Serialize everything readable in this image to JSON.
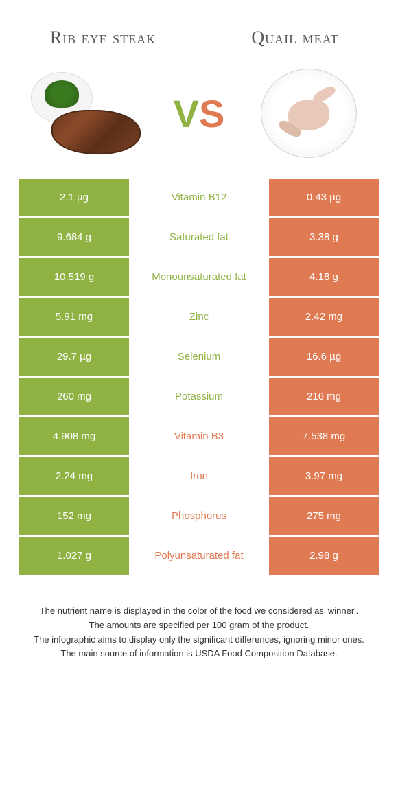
{
  "colors": {
    "green": "#8fb243",
    "orange": "#e07a52",
    "white": "#ffffff"
  },
  "header": {
    "left_title": "Rib eye steak",
    "right_title": "Quail meat",
    "vs_v": "V",
    "vs_s": "S"
  },
  "rows": [
    {
      "left": "2.1 µg",
      "label": "Vitamin B12",
      "right": "0.43 µg",
      "winner": "left"
    },
    {
      "left": "9.684 g",
      "label": "Saturated fat",
      "right": "3.38 g",
      "winner": "left"
    },
    {
      "left": "10.519 g",
      "label": "Monounsaturated fat",
      "right": "4.18 g",
      "winner": "left"
    },
    {
      "left": "5.91 mg",
      "label": "Zinc",
      "right": "2.42 mg",
      "winner": "left"
    },
    {
      "left": "29.7 µg",
      "label": "Selenium",
      "right": "16.6 µg",
      "winner": "left"
    },
    {
      "left": "260 mg",
      "label": "Potassium",
      "right": "216 mg",
      "winner": "left"
    },
    {
      "left": "4.908 mg",
      "label": "Vitamin B3",
      "right": "7.538 mg",
      "winner": "right"
    },
    {
      "left": "2.24 mg",
      "label": "Iron",
      "right": "3.97 mg",
      "winner": "right"
    },
    {
      "left": "152 mg",
      "label": "Phosphorus",
      "right": "275 mg",
      "winner": "right"
    },
    {
      "left": "1.027 g",
      "label": "Polyunsaturated fat",
      "right": "2.98 g",
      "winner": "right"
    }
  ],
  "footer": {
    "line1": "The nutrient name is displayed in the color of the food we considered as 'winner'.",
    "line2": "The amounts are specified per 100 gram of the product.",
    "line3": "The infographic aims to display only the significant differences, ignoring minor ones.",
    "line4": "The main source of information is USDA Food Composition Database."
  }
}
